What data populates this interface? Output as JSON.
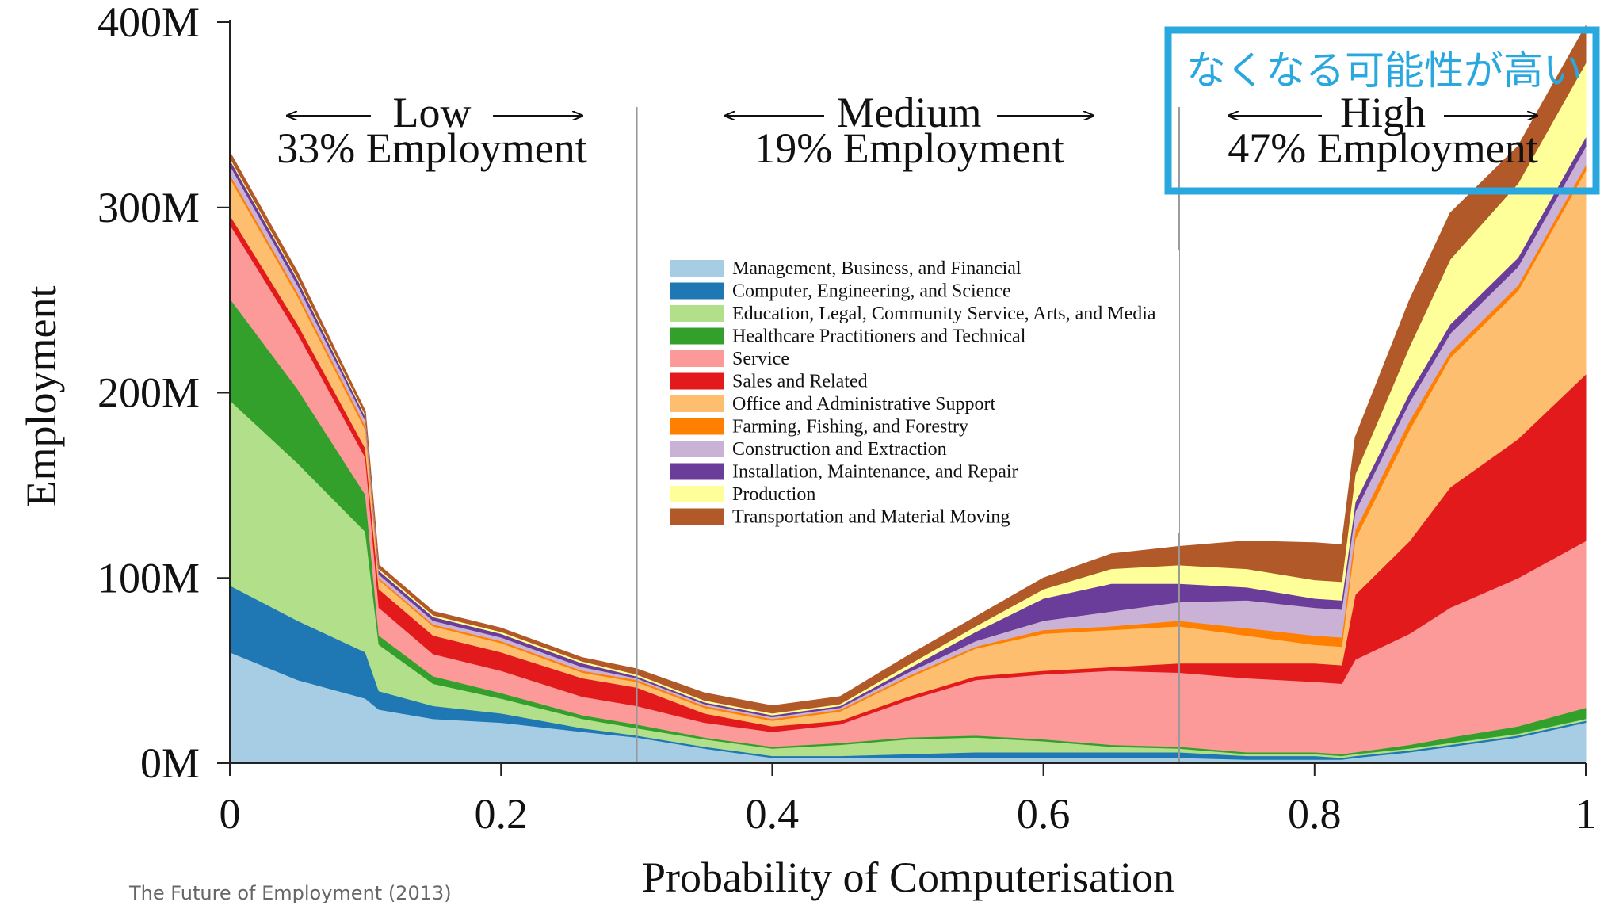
{
  "chart_data": {
    "type": "area",
    "stacked": true,
    "xlabel": "Probability of Computerisation",
    "ylabel": "Employment",
    "xlim": [
      0,
      1
    ],
    "ylim": [
      0,
      400
    ],
    "xticks": [
      0,
      0.2,
      0.4,
      0.6,
      0.8,
      1
    ],
    "xtick_labels": [
      "0",
      "0.2",
      "0.4",
      "0.6",
      "0.8",
      "1"
    ],
    "yticks": [
      0,
      100,
      200,
      300,
      400
    ],
    "ytick_labels": [
      "0M",
      "100M",
      "200M",
      "300M",
      "400M"
    ],
    "legend_position": "center",
    "x": [
      0,
      0.05,
      0.1,
      0.11,
      0.15,
      0.2,
      0.26,
      0.3,
      0.35,
      0.4,
      0.45,
      0.5,
      0.55,
      0.6,
      0.65,
      0.7,
      0.75,
      0.8,
      0.82,
      0.83,
      0.87,
      0.9,
      0.95,
      1.0
    ],
    "series": [
      {
        "name": "Management, Business, and Financial",
        "color": "#a6cde3",
        "values": [
          60,
          45,
          35,
          29,
          24,
          22,
          17,
          14,
          8,
          3,
          3,
          3,
          3,
          3,
          3,
          3,
          2,
          2,
          2,
          3,
          6,
          9,
          14,
          22
        ]
      },
      {
        "name": "Computer, Engineering, and Science",
        "color": "#1f78b4",
        "values": [
          36,
          32,
          25,
          10,
          7,
          5,
          2,
          1,
          1,
          1,
          1,
          2,
          3,
          3,
          3,
          3,
          2,
          2,
          1,
          1,
          1,
          1,
          1,
          1
        ]
      },
      {
        "name": "Education, Legal, Community Service, Arts, and Media",
        "color": "#b2df8a",
        "values": [
          100,
          85,
          65,
          25,
          12,
          8,
          5,
          4,
          4,
          4,
          6,
          8,
          8,
          6,
          3,
          2,
          1,
          1,
          1,
          1,
          1,
          1,
          1,
          1
        ]
      },
      {
        "name": "Healthcare Practitioners and Technical",
        "color": "#33a02c",
        "values": [
          55,
          40,
          20,
          5,
          4,
          3,
          2,
          2,
          1,
          1,
          1,
          1,
          1,
          1,
          1,
          1,
          1,
          1,
          1,
          1,
          2,
          3,
          4,
          6
        ]
      },
      {
        "name": "Service",
        "color": "#fb9a99",
        "values": [
          40,
          30,
          20,
          15,
          12,
          12,
          10,
          10,
          8,
          8,
          10,
          20,
          30,
          35,
          40,
          40,
          40,
          38,
          38,
          50,
          60,
          70,
          80,
          90
        ]
      },
      {
        "name": "Sales and Related",
        "color": "#e31a1c",
        "values": [
          5,
          5,
          5,
          10,
          10,
          10,
          10,
          10,
          5,
          3,
          2,
          2,
          2,
          2,
          2,
          5,
          8,
          10,
          10,
          35,
          50,
          65,
          75,
          90
        ]
      },
      {
        "name": "Office and Administrative Support",
        "color": "#fdbf6f",
        "values": [
          20,
          15,
          10,
          5,
          5,
          5,
          3,
          3,
          3,
          3,
          5,
          10,
          15,
          20,
          20,
          20,
          15,
          10,
          10,
          30,
          60,
          70,
          80,
          110
        ]
      },
      {
        "name": "Farming, Fishing, and Forestry",
        "color": "#ff7f00",
        "values": [
          2,
          2,
          2,
          1,
          1,
          1,
          1,
          1,
          1,
          1,
          1,
          1,
          1,
          2,
          2,
          3,
          4,
          5,
          5,
          5,
          5,
          3,
          3,
          3
        ]
      },
      {
        "name": "Construction and Extraction",
        "color": "#cab2d6",
        "values": [
          5,
          4,
          3,
          2,
          2,
          2,
          2,
          1,
          1,
          1,
          1,
          2,
          3,
          5,
          8,
          10,
          15,
          15,
          15,
          10,
          10,
          10,
          10,
          10
        ]
      },
      {
        "name": "Installation, Maintenance, and Repair",
        "color": "#6a3d9a",
        "values": [
          3,
          3,
          2,
          2,
          2,
          2,
          2,
          1,
          1,
          1,
          1,
          2,
          5,
          12,
          15,
          10,
          7,
          5,
          5,
          5,
          5,
          5,
          5,
          5
        ]
      },
      {
        "name": "Production",
        "color": "#ffff99",
        "values": [
          1,
          1,
          1,
          1,
          1,
          1,
          1,
          1,
          1,
          1,
          1,
          2,
          3,
          5,
          8,
          10,
          10,
          10,
          10,
          15,
          25,
          35,
          40,
          40
        ]
      },
      {
        "name": "Transportation and Material Moving",
        "color": "#b15928",
        "values": [
          3,
          3,
          2,
          2,
          2,
          2,
          2,
          3,
          4,
          4,
          4,
          5,
          5,
          6,
          8,
          10,
          15,
          20,
          20,
          20,
          25,
          25,
          20,
          20
        ]
      }
    ],
    "dividers": [
      0.3,
      0.7
    ],
    "regions": [
      {
        "name": "Low",
        "share": "33% Employment"
      },
      {
        "name": "Medium",
        "share": "19% Employment"
      },
      {
        "name": "High",
        "share": "47% Employment"
      }
    ]
  },
  "annotation": {
    "text": "なくなる可能性が高い",
    "color": "#29a8e0"
  },
  "source": "The Future of Employment (2013)"
}
